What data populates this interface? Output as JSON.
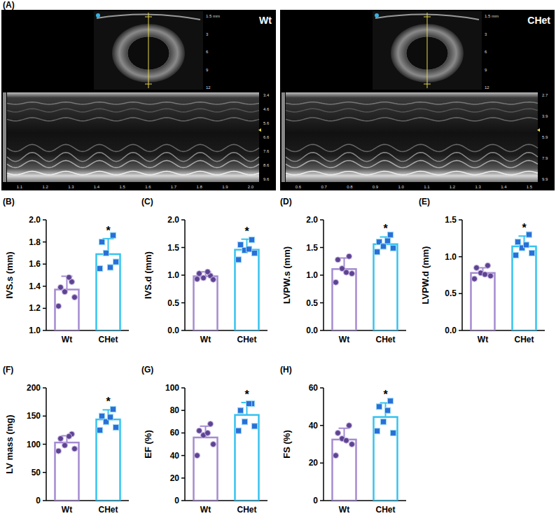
{
  "echo": {
    "title": "(A)",
    "images": [
      {
        "label": "Wt",
        "inset_ticks": [
          "1.5 mm",
          "3",
          "6",
          "9",
          "12"
        ],
        "depth_ticks": [
          "3.4",
          "4.6",
          "5.6",
          "6.6",
          "7.6",
          "8.6",
          "9.6"
        ],
        "time_ticks": [
          "1.1",
          "1.2",
          "1.3",
          "1.4",
          "1.5",
          "1.6",
          "1.7",
          "1.8",
          "1.9",
          "2.0"
        ]
      },
      {
        "label": "CHet",
        "inset_ticks": [
          "1.5 mm",
          "3",
          "6",
          "9",
          "12"
        ],
        "depth_ticks": [
          "2.7",
          "3.9",
          "5.9",
          "7.9",
          "9.9"
        ],
        "time_ticks": [
          "0.6",
          "0.7",
          "0.8",
          "0.9",
          "1.0",
          "1.1",
          "1.2",
          "1.3",
          "1.4",
          "1.5"
        ]
      }
    ]
  },
  "chart_data": [
    {
      "type": "bar",
      "title": "(B)",
      "y_label": "IVS.s (mm)",
      "categories": [
        "Wt",
        "CHet"
      ],
      "values": [
        1.37,
        1.69
      ],
      "errors": [
        0.12,
        0.14
      ],
      "points": [
        [
          1.39,
          1.44,
          1.35,
          1.3,
          1.22,
          1.48
        ],
        [
          1.8,
          1.86,
          1.7,
          1.62,
          1.56,
          1.57
        ]
      ],
      "colors": [
        "#a58bd0",
        "#35c3ef"
      ],
      "ylim": [
        1.0,
        2.0
      ],
      "yticks": [
        {
          "value": 1.0,
          "label": "1.0"
        },
        1.2,
        1.4,
        1.6,
        1.8,
        {
          "value": 2.0,
          "label": "2.0"
        }
      ],
      "annotations": [
        {
          "text": "*",
          "category": "CHet"
        }
      ]
    },
    {
      "type": "bar",
      "title": "(C)",
      "y_label": "IVS.d (mm)",
      "categories": [
        "Wt",
        "CHet"
      ],
      "values": [
        0.98,
        1.46
      ],
      "errors": [
        0.08,
        0.19
      ],
      "points": [
        [
          1.03,
          0.99,
          0.95,
          0.92,
          0.93,
          1.06
        ],
        [
          1.55,
          1.64,
          1.45,
          1.4,
          1.28,
          1.47
        ]
      ],
      "colors": [
        "#a58bd0",
        "#35c3ef"
      ],
      "ylim": [
        0,
        2.0
      ],
      "yticks": [
        {
          "value": 0,
          "label": "0.0"
        },
        0.5,
        {
          "value": 1.0,
          "label": "1.0"
        },
        1.5,
        {
          "value": 2.0,
          "label": "2.0"
        }
      ],
      "annotations": [
        {
          "text": "*",
          "category": "CHet"
        }
      ]
    },
    {
      "type": "bar",
      "title": "(D)",
      "y_label": "LVPW.s (mm)",
      "categories": [
        "Wt",
        "CHet"
      ],
      "values": [
        1.11,
        1.56
      ],
      "errors": [
        0.2,
        0.13
      ],
      "points": [
        [
          1.28,
          1.34,
          1.12,
          1.03,
          0.87,
          1.05
        ],
        [
          1.6,
          1.73,
          1.52,
          1.49,
          1.42,
          1.62
        ]
      ],
      "colors": [
        "#a58bd0",
        "#35c3ef"
      ],
      "ylim": [
        0,
        2.0
      ],
      "yticks": [
        {
          "value": 0,
          "label": "0.0"
        },
        0.5,
        {
          "value": 1.0,
          "label": "1.0"
        },
        1.5,
        {
          "value": 2.0,
          "label": "2.0"
        }
      ],
      "annotations": [
        {
          "text": "*",
          "category": "CHet"
        }
      ]
    },
    {
      "type": "bar",
      "title": "(E)",
      "y_label": "LVPW.d (mm)",
      "categories": [
        "Wt",
        "CHet"
      ],
      "values": [
        0.78,
        1.14
      ],
      "errors": [
        0.07,
        0.14
      ],
      "points": [
        [
          0.85,
          0.88,
          0.78,
          0.74,
          0.7,
          0.76
        ],
        [
          1.2,
          1.3,
          1.12,
          1.05,
          1.02,
          1.16
        ]
      ],
      "colors": [
        "#a58bd0",
        "#35c3ef"
      ],
      "ylim": [
        0,
        1.5
      ],
      "yticks": [
        {
          "value": 0,
          "label": "0.0"
        },
        0.5,
        {
          "value": 1.0,
          "label": "1.0"
        },
        1.5
      ],
      "annotations": [
        {
          "text": "*",
          "category": "CHet"
        }
      ]
    },
    {
      "type": "bar",
      "title": "(F)",
      "y_label": "LV mass (mg)",
      "categories": [
        "Wt",
        "CHet"
      ],
      "values": [
        103,
        144
      ],
      "errors": [
        12,
        17
      ],
      "points": [
        [
          110,
          118,
          98,
          92,
          88,
          114
        ],
        [
          150,
          162,
          140,
          130,
          125,
          148
        ]
      ],
      "colors": [
        "#a58bd0",
        "#35c3ef"
      ],
      "ylim": [
        0,
        200
      ],
      "yticks": [
        0,
        50,
        100,
        150,
        200
      ],
      "annotations": [
        {
          "text": "*",
          "category": "CHet"
        }
      ]
    },
    {
      "type": "bar",
      "title": "(G)",
      "y_label": "EF (%)",
      "categories": [
        "Wt",
        "CHet"
      ],
      "values": [
        56,
        76
      ],
      "errors": [
        10,
        11
      ],
      "points": [
        [
          62,
          68,
          58,
          50,
          40,
          60
        ],
        [
          80,
          86,
          70,
          66,
          62,
          86
        ]
      ],
      "colors": [
        "#a58bd0",
        "#35c3ef"
      ],
      "ylim": [
        0,
        100
      ],
      "yticks": [
        0,
        20,
        40,
        60,
        80,
        100
      ],
      "annotations": [
        {
          "text": "*",
          "category": "CHet"
        }
      ]
    },
    {
      "type": "bar",
      "title": "(H)",
      "y_label": "FS (%)",
      "categories": [
        "Wt",
        "CHet"
      ],
      "values": [
        32.5,
        44.5
      ],
      "errors": [
        6,
        7.5
      ],
      "points": [
        [
          36,
          40,
          33,
          30,
          24,
          32
        ],
        [
          50,
          53,
          42,
          36,
          37,
          48
        ]
      ],
      "colors": [
        "#a58bd0",
        "#35c3ef"
      ],
      "ylim": [
        0,
        60
      ],
      "yticks": [
        0,
        20,
        40,
        60
      ],
      "annotations": [
        {
          "text": "*",
          "category": "CHet"
        }
      ]
    }
  ]
}
